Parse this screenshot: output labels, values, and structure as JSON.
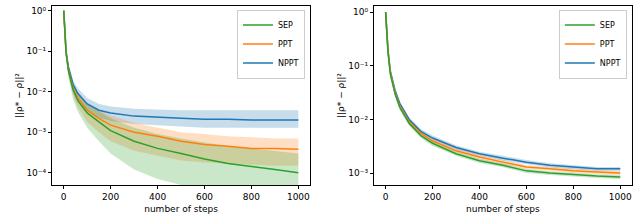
{
  "chart_data": [
    {
      "type": "line",
      "log": "y",
      "grid": false,
      "legend": "upper right",
      "x_label": "number of steps",
      "y_label": "||ρ* − ρ||²",
      "x": [
        0,
        10,
        20,
        40,
        60,
        100,
        150,
        200,
        300,
        400,
        500,
        600,
        700,
        800,
        900,
        1000
      ],
      "xlim": [
        -50,
        1050
      ],
      "xticks": [
        0,
        200,
        400,
        600,
        800,
        1000
      ],
      "ylim": [
        5e-05,
        1.3
      ],
      "yticks": [
        {
          "value": 1,
          "label": "10⁰"
        },
        {
          "value": 0.1,
          "label": "10⁻¹"
        },
        {
          "value": 0.01,
          "label": "10⁻²"
        },
        {
          "value": 0.001,
          "label": "10⁻³"
        },
        {
          "value": 0.0001,
          "label": "10⁻⁴"
        }
      ],
      "series": [
        {
          "name": "NPPT",
          "color": "#1f77b4",
          "values": [
            1.0,
            0.1,
            0.04,
            0.015,
            0.009,
            0.005,
            0.0035,
            0.003,
            0.0025,
            0.0023,
            0.0022,
            0.0021,
            0.0021,
            0.002,
            0.002,
            0.002
          ],
          "lower": [
            1.0,
            0.08,
            0.03,
            0.011,
            0.006,
            0.0033,
            0.0023,
            0.0019,
            0.0016,
            0.0015,
            0.0014,
            0.0013,
            0.0013,
            0.0013,
            0.0013,
            0.0013
          ],
          "upper": [
            1.0,
            0.12,
            0.05,
            0.019,
            0.012,
            0.007,
            0.005,
            0.0043,
            0.0038,
            0.0036,
            0.0035,
            0.0035,
            0.0035,
            0.0035,
            0.0035,
            0.0035
          ]
        },
        {
          "name": "PPT",
          "color": "#ff7f0e",
          "values": [
            1.0,
            0.09,
            0.035,
            0.012,
            0.007,
            0.0035,
            0.0022,
            0.0015,
            0.001,
            0.0008,
            0.0006,
            0.0005,
            0.00045,
            0.0004,
            0.0004,
            0.00038
          ],
          "lower": [
            1.0,
            0.07,
            0.026,
            0.008,
            0.0042,
            0.0018,
            0.001,
            0.0006,
            0.00035,
            0.00026,
            0.0002,
            0.00018,
            0.00017,
            0.00016,
            0.00015,
            0.00015
          ],
          "upper": [
            1.0,
            0.11,
            0.045,
            0.016,
            0.01,
            0.0053,
            0.0035,
            0.0026,
            0.0017,
            0.0013,
            0.001,
            0.0009,
            0.0008,
            0.00075,
            0.0007,
            0.0007
          ]
        },
        {
          "name": "SEP",
          "color": "#2ca02c",
          "values": [
            1.0,
            0.09,
            0.033,
            0.011,
            0.006,
            0.003,
            0.0018,
            0.0011,
            0.0006,
            0.0004,
            0.0003,
            0.00022,
            0.00017,
            0.00014,
            0.00012,
            0.0001
          ],
          "lower": [
            1.0,
            0.065,
            0.022,
            0.0065,
            0.0032,
            0.0013,
            0.0006,
            0.0003,
            0.00012,
            7e-05,
            5e-05,
            4e-05,
            3.5e-05,
            3e-05,
            3e-05,
            3e-05
          ],
          "upper": [
            1.0,
            0.11,
            0.044,
            0.016,
            0.0095,
            0.0052,
            0.0033,
            0.0022,
            0.0013,
            0.0009,
            0.0007,
            0.00055,
            0.00045,
            0.0004,
            0.00035,
            0.0003
          ]
        }
      ]
    },
    {
      "type": "line",
      "log": "y",
      "grid": false,
      "legend": "upper right",
      "x_label": "number of steps",
      "y_label": "||ρ* − ρ||²",
      "x": [
        0,
        10,
        20,
        40,
        60,
        100,
        150,
        200,
        300,
        400,
        500,
        600,
        700,
        800,
        900,
        1000
      ],
      "xlim": [
        -50,
        1050
      ],
      "xticks": [
        0,
        200,
        400,
        600,
        800,
        1000
      ],
      "ylim": [
        0.0006,
        1.3
      ],
      "yticks": [
        {
          "value": 1,
          "label": "10⁰"
        },
        {
          "value": 0.1,
          "label": "10⁻¹"
        },
        {
          "value": 0.01,
          "label": "10⁻²"
        },
        {
          "value": 0.001,
          "label": "10⁻³"
        }
      ],
      "series": [
        {
          "name": "NPPT",
          "color": "#1f77b4",
          "values": [
            1.0,
            0.2,
            0.08,
            0.035,
            0.02,
            0.01,
            0.006,
            0.0045,
            0.003,
            0.0023,
            0.0019,
            0.0016,
            0.0014,
            0.0013,
            0.0012,
            0.0012
          ],
          "lower": [
            1.0,
            0.18,
            0.072,
            0.032,
            0.018,
            0.009,
            0.0054,
            0.0041,
            0.0027,
            0.0021,
            0.0017,
            0.00145,
            0.00127,
            0.00118,
            0.0011,
            0.0011
          ],
          "upper": [
            1.0,
            0.22,
            0.088,
            0.038,
            0.022,
            0.011,
            0.0066,
            0.005,
            0.0033,
            0.0025,
            0.0021,
            0.00175,
            0.00153,
            0.00142,
            0.0013,
            0.0013
          ]
        },
        {
          "name": "PPT",
          "color": "#ff7f0e",
          "values": [
            1.0,
            0.19,
            0.075,
            0.032,
            0.018,
            0.009,
            0.0055,
            0.004,
            0.0026,
            0.002,
            0.0016,
            0.0013,
            0.0012,
            0.0011,
            0.00105,
            0.001
          ],
          "lower": [
            1.0,
            0.17,
            0.068,
            0.029,
            0.016,
            0.008,
            0.005,
            0.0036,
            0.0024,
            0.0018,
            0.00145,
            0.0012,
            0.0011,
            0.001,
            0.00096,
            0.00092
          ],
          "upper": [
            1.0,
            0.21,
            0.082,
            0.035,
            0.02,
            0.01,
            0.006,
            0.0044,
            0.0029,
            0.0022,
            0.00175,
            0.0014,
            0.0013,
            0.0012,
            0.00114,
            0.0011
          ]
        },
        {
          "name": "SEP",
          "color": "#2ca02c",
          "values": [
            1.0,
            0.18,
            0.07,
            0.03,
            0.017,
            0.0085,
            0.005,
            0.0036,
            0.0023,
            0.0017,
            0.0014,
            0.0011,
            0.001,
            0.00093,
            0.00088,
            0.00085
          ],
          "lower": [
            1.0,
            0.16,
            0.063,
            0.027,
            0.015,
            0.0076,
            0.0045,
            0.0032,
            0.0021,
            0.00155,
            0.00128,
            0.001,
            0.00092,
            0.00086,
            0.00081,
            0.00078
          ],
          "upper": [
            1.0,
            0.2,
            0.077,
            0.033,
            0.019,
            0.0094,
            0.0055,
            0.004,
            0.0025,
            0.00185,
            0.00152,
            0.0012,
            0.00108,
            0.001,
            0.00095,
            0.00092
          ]
        }
      ]
    }
  ]
}
